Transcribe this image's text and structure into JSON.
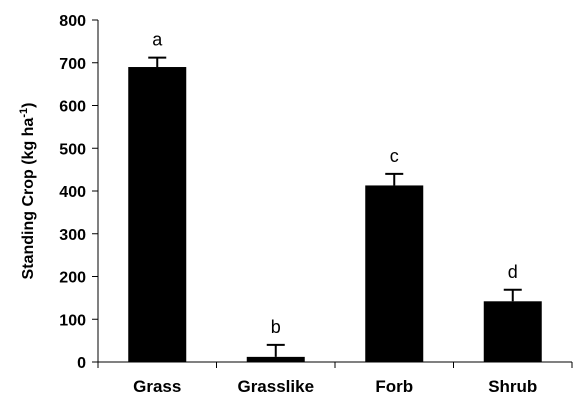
{
  "chart_data": {
    "type": "bar",
    "categories": [
      "Grass",
      "Grasslike",
      "Forb",
      "Shrub"
    ],
    "values": [
      690,
      12,
      413,
      142
    ],
    "error": [
      22,
      28,
      27,
      27
    ],
    "significance_letters": [
      "a",
      "b",
      "c",
      "d"
    ],
    "ylim": [
      0,
      800
    ],
    "yticks": [
      "0",
      "100",
      "200",
      "300",
      "400",
      "500",
      "600",
      "700",
      "800"
    ],
    "ylabel": {
      "main": "Standing Crop (kg ha",
      "superscript": "-1",
      "close": ")"
    },
    "xlabel": "",
    "title": "",
    "grid": false,
    "legend": "none",
    "bar_color": "#000000"
  }
}
